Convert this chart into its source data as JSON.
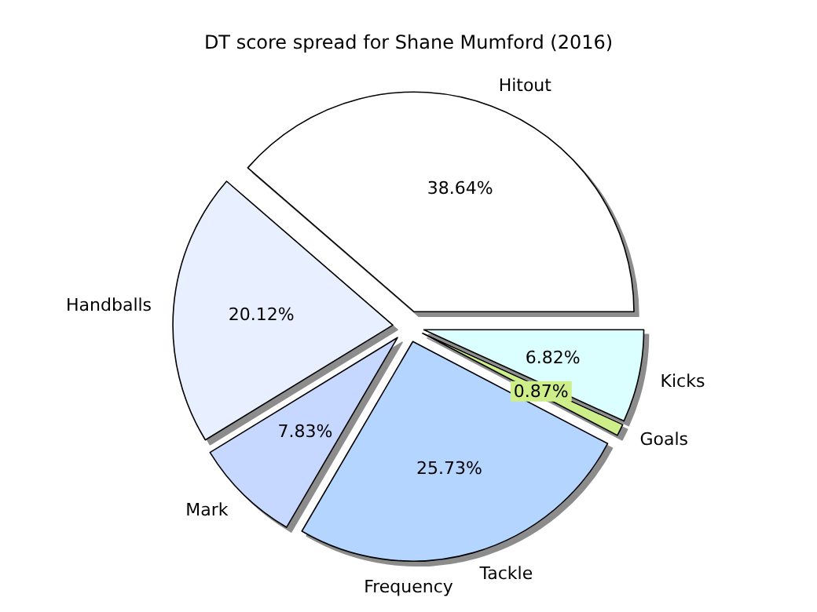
{
  "chart_data": {
    "type": "pie",
    "title": "DT score spread for Shane Mumford (2016)",
    "xlabel": "Frequency",
    "categories": [
      "Hitout",
      "Handballs",
      "Mark",
      "Tackle",
      "Goals",
      "Kicks"
    ],
    "values": [
      38.64,
      20.12,
      7.83,
      25.73,
      0.87,
      6.82
    ],
    "value_labels": [
      "38.64%",
      "20.12%",
      "7.83%",
      "25.73%",
      "0.87%",
      "6.82%"
    ],
    "colors": [
      "#ffffff",
      "#e8f0ff",
      "#c6d8ff",
      "#b3d5ff",
      "#cdee88",
      "#dbffff"
    ]
  }
}
